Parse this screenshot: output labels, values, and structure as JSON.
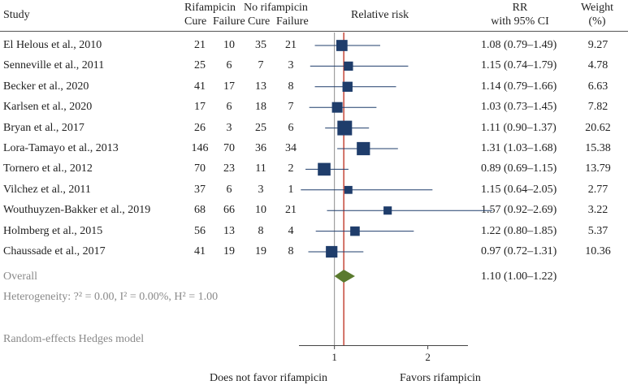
{
  "chart_data": {
    "type": "forest",
    "headers": {
      "study": "Study",
      "group1": "Rifampicin",
      "group2": "No rifampicin",
      "cure": "Cure",
      "failure": "Failure",
      "plot": "Relative risk",
      "rr_line1": "RR",
      "rr_line2": "with 95% CI",
      "weight_line1": "Weight",
      "weight_line2": "(%)"
    },
    "studies": [
      {
        "name": "El Helous et al., 2010",
        "cure1": "21",
        "fail1": "10",
        "cure2": "35",
        "fail2": "21",
        "rr": 1.08,
        "lo": 0.79,
        "hi": 1.49,
        "rr_text": "1.08 (0.79–1.49)",
        "weight": 9.27,
        "weight_text": "9.27"
      },
      {
        "name": "Senneville et al., 2011",
        "cure1": "25",
        "fail1": "6",
        "cure2": "7",
        "fail2": "3",
        "rr": 1.15,
        "lo": 0.74,
        "hi": 1.79,
        "rr_text": "1.15 (0.74–1.79)",
        "weight": 4.78,
        "weight_text": "4.78"
      },
      {
        "name": "Becker et al., 2020",
        "cure1": "41",
        "fail1": "17",
        "cure2": "13",
        "fail2": "8",
        "rr": 1.14,
        "lo": 0.79,
        "hi": 1.66,
        "rr_text": "1.14 (0.79–1.66)",
        "weight": 6.63,
        "weight_text": "6.63"
      },
      {
        "name": "Karlsen et al., 2020",
        "cure1": "17",
        "fail1": "6",
        "cure2": "18",
        "fail2": "7",
        "rr": 1.03,
        "lo": 0.73,
        "hi": 1.45,
        "rr_text": "1.03 (0.73–1.45)",
        "weight": 7.82,
        "weight_text": "7.82"
      },
      {
        "name": "Bryan et al., 2017",
        "cure1": "26",
        "fail1": "3",
        "cure2": "25",
        "fail2": "6",
        "rr": 1.11,
        "lo": 0.9,
        "hi": 1.37,
        "rr_text": "1.11 (0.90–1.37)",
        "weight": 20.62,
        "weight_text": "20.62"
      },
      {
        "name": "Lora-Tamayo et al., 2013",
        "cure1": "146",
        "fail1": "70",
        "cure2": "36",
        "fail2": "34",
        "rr": 1.31,
        "lo": 1.03,
        "hi": 1.68,
        "rr_text": "1.31 (1.03–1.68)",
        "weight": 15.38,
        "weight_text": "15.38"
      },
      {
        "name": "Tornero et al., 2012",
        "cure1": "70",
        "fail1": "23",
        "cure2": "11",
        "fail2": "2",
        "rr": 0.89,
        "lo": 0.69,
        "hi": 1.15,
        "rr_text": "0.89 (0.69–1.15)",
        "weight": 13.79,
        "weight_text": "13.79"
      },
      {
        "name": "Vilchez et al., 2011",
        "cure1": "37",
        "fail1": "6",
        "cure2": "3",
        "fail2": "1",
        "rr": 1.15,
        "lo": 0.64,
        "hi": 2.05,
        "rr_text": "1.15 (0.64–2.05)",
        "weight": 2.77,
        "weight_text": "2.77"
      },
      {
        "name": "Wouthuyzen-Bakker et al., 2019",
        "cure1": "68",
        "fail1": "66",
        "cure2": "10",
        "fail2": "21",
        "rr": 1.57,
        "lo": 0.92,
        "hi": 2.69,
        "rr_text": "1.57 (0.92–2.69)",
        "weight": 3.22,
        "weight_text": "3.22"
      },
      {
        "name": "Holmberg et al., 2015",
        "cure1": "56",
        "fail1": "13",
        "cure2": "8",
        "fail2": "4",
        "rr": 1.22,
        "lo": 0.8,
        "hi": 1.85,
        "rr_text": "1.22 (0.80–1.85)",
        "weight": 5.37,
        "weight_text": "5.37"
      },
      {
        "name": "Chaussade et al., 2017",
        "cure1": "41",
        "fail1": "19",
        "cure2": "19",
        "fail2": "8",
        "rr": 0.97,
        "lo": 0.72,
        "hi": 1.31,
        "rr_text": "0.97 (0.72–1.31)",
        "weight": 10.36,
        "weight_text": "10.36"
      }
    ],
    "overall": {
      "label": "Overall",
      "rr": 1.1,
      "lo": 1.0,
      "hi": 1.22,
      "rr_text": "1.10 (1.00–1.22)"
    },
    "heterogeneity": "Heterogeneity: ?² = 0.00, I² = 0.00%, H² = 1.00",
    "model": "Random-effects Hedges model",
    "x_axis": {
      "min": 0.62,
      "max": 2.43,
      "ticks": [
        1,
        2
      ],
      "tick_labels": [
        "1",
        "2"
      ],
      "null_line": 1
    },
    "footer": {
      "left": "Does not favor rifampicin",
      "right": "Favors rifampicin"
    },
    "colors": {
      "marker": "#1f3d6b",
      "diamond": "#5a7a2e",
      "null_line": "#8c8c8c",
      "overall_line": "#c0392b",
      "axis": "#444444",
      "text": "#222222",
      "muted": "#8a8a8a"
    }
  }
}
